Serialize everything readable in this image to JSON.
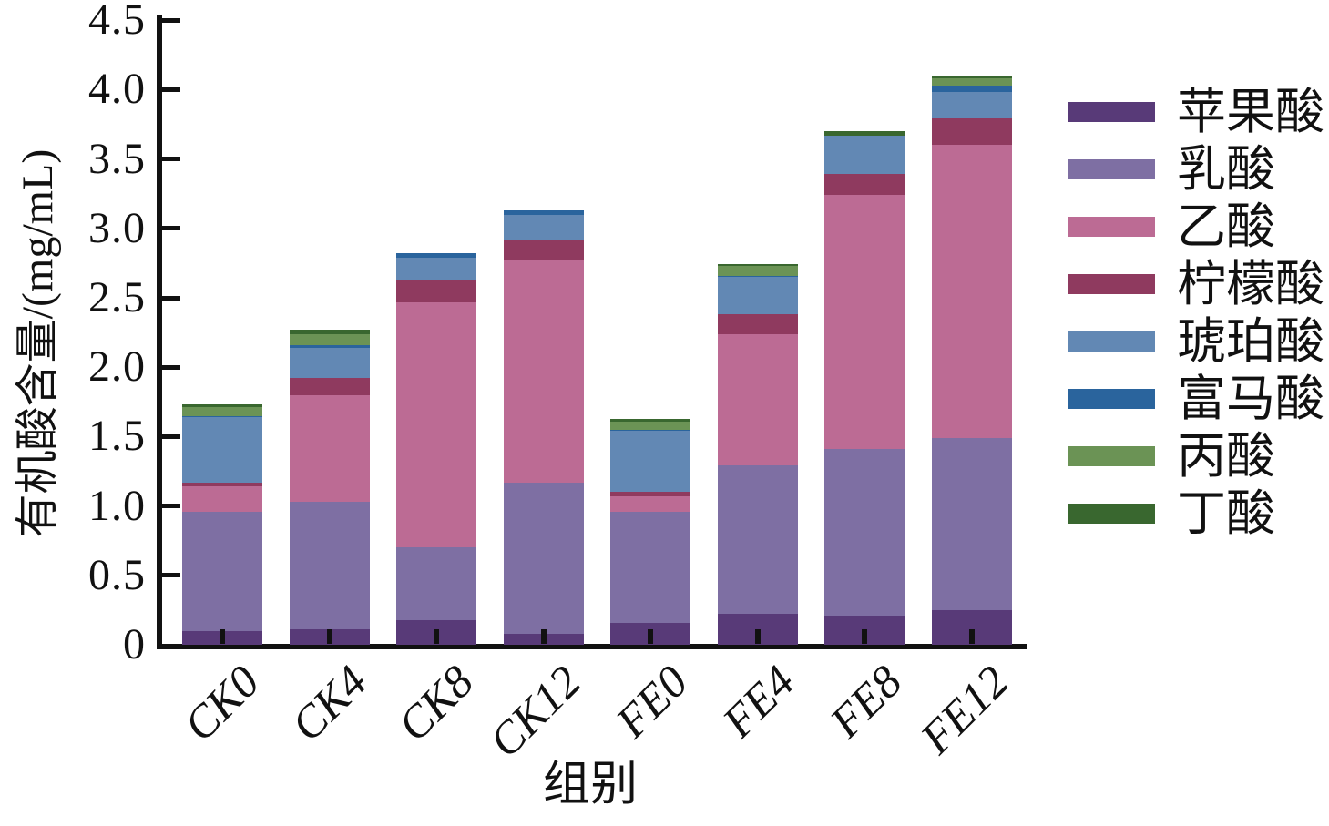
{
  "figure": {
    "background": "#ffffff",
    "axis_color": "#111111"
  },
  "chart_data": {
    "type": "bar",
    "stacked": true,
    "title": "",
    "xlabel": "组别",
    "ylabel": "有机酸含量/(mg/mL)",
    "categories": [
      "CK0",
      "CK4",
      "CK8",
      "CK12",
      "FE0",
      "FE4",
      "FE8",
      "FE12"
    ],
    "series": [
      {
        "name": "苹果酸",
        "color": "#583a78",
        "values": [
          0.1,
          0.11,
          0.18,
          0.08,
          0.16,
          0.22,
          0.21,
          0.25
        ]
      },
      {
        "name": "乳酸",
        "color": "#7e6fa3",
        "values": [
          0.86,
          0.92,
          0.52,
          1.09,
          0.8,
          1.07,
          1.2,
          1.24
        ]
      },
      {
        "name": "乙酸",
        "color": "#bc6b94",
        "values": [
          0.18,
          0.77,
          1.77,
          1.6,
          0.11,
          0.95,
          1.83,
          2.11
        ]
      },
      {
        "name": "柠檬酸",
        "color": "#8f3a5f",
        "values": [
          0.03,
          0.12,
          0.16,
          0.15,
          0.03,
          0.14,
          0.15,
          0.19
        ]
      },
      {
        "name": "琥珀酸",
        "color": "#6288b4",
        "values": [
          0.47,
          0.22,
          0.16,
          0.18,
          0.44,
          0.27,
          0.28,
          0.19
        ]
      },
      {
        "name": "富马酸",
        "color": "#2a649d",
        "values": [
          0.01,
          0.02,
          0.03,
          0.03,
          0.01,
          0.01,
          0.0,
          0.05
        ]
      },
      {
        "name": "丙酸",
        "color": "#6b9355",
        "values": [
          0.06,
          0.08,
          0.0,
          0.0,
          0.06,
          0.07,
          0.0,
          0.05
        ]
      },
      {
        "name": "丁酸",
        "color": "#39672f",
        "values": [
          0.02,
          0.03,
          0.0,
          0.0,
          0.02,
          0.01,
          0.03,
          0.02
        ]
      }
    ],
    "totals": [
      1.73,
      2.27,
      2.82,
      3.13,
      1.63,
      2.74,
      3.7,
      4.1
    ],
    "ylim": [
      0,
      4.5
    ],
    "ytick_step": 0.5,
    "ytick_labels": [
      "0",
      "0.5",
      "1.0",
      "1.5",
      "2.0",
      "2.5",
      "3.0",
      "3.5",
      "4.0",
      "4.5"
    ],
    "legend_position": "right",
    "grid": false
  }
}
